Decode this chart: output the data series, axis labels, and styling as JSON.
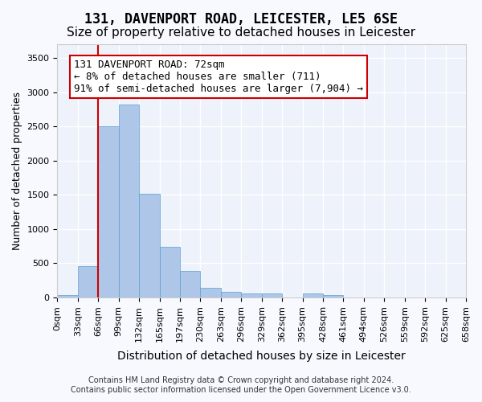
{
  "title_line1": "131, DAVENPORT ROAD, LEICESTER, LE5 6SE",
  "title_line2": "Size of property relative to detached houses in Leicester",
  "xlabel": "Distribution of detached houses by size in Leicester",
  "ylabel": "Number of detached properties",
  "bar_color": "#aec6e8",
  "bar_edgecolor": "#5a9fd4",
  "background_color": "#eef2fb",
  "grid_color": "#ffffff",
  "bin_labels": [
    "0sqm",
    "33sqm",
    "66sqm",
    "99sqm",
    "132sqm",
    "165sqm",
    "197sqm",
    "230sqm",
    "263sqm",
    "296sqm",
    "329sqm",
    "362sqm",
    "395sqm",
    "428sqm",
    "461sqm",
    "494sqm",
    "526sqm",
    "559sqm",
    "592sqm",
    "625sqm",
    "658sqm"
  ],
  "bar_values": [
    30,
    460,
    2500,
    2820,
    1520,
    740,
    390,
    140,
    80,
    55,
    55,
    0,
    55,
    30,
    0,
    0,
    0,
    0,
    0,
    0
  ],
  "ylim": [
    0,
    3700
  ],
  "yticks": [
    0,
    500,
    1000,
    1500,
    2000,
    2500,
    3000,
    3500
  ],
  "vline_x": 2,
  "vline_color": "#cc0000",
  "annotation_text": "131 DAVENPORT ROAD: 72sqm\n← 8% of detached houses are smaller (711)\n91% of semi-detached houses are larger (7,904) →",
  "annotation_box_color": "#ffffff",
  "annotation_box_edgecolor": "#cc0000",
  "footer_line1": "Contains HM Land Registry data © Crown copyright and database right 2024.",
  "footer_line2": "Contains public sector information licensed under the Open Government Licence v3.0.",
  "title_fontsize": 12,
  "subtitle_fontsize": 11,
  "xlabel_fontsize": 10,
  "ylabel_fontsize": 9,
  "tick_fontsize": 8,
  "annotation_fontsize": 9,
  "footer_fontsize": 7
}
